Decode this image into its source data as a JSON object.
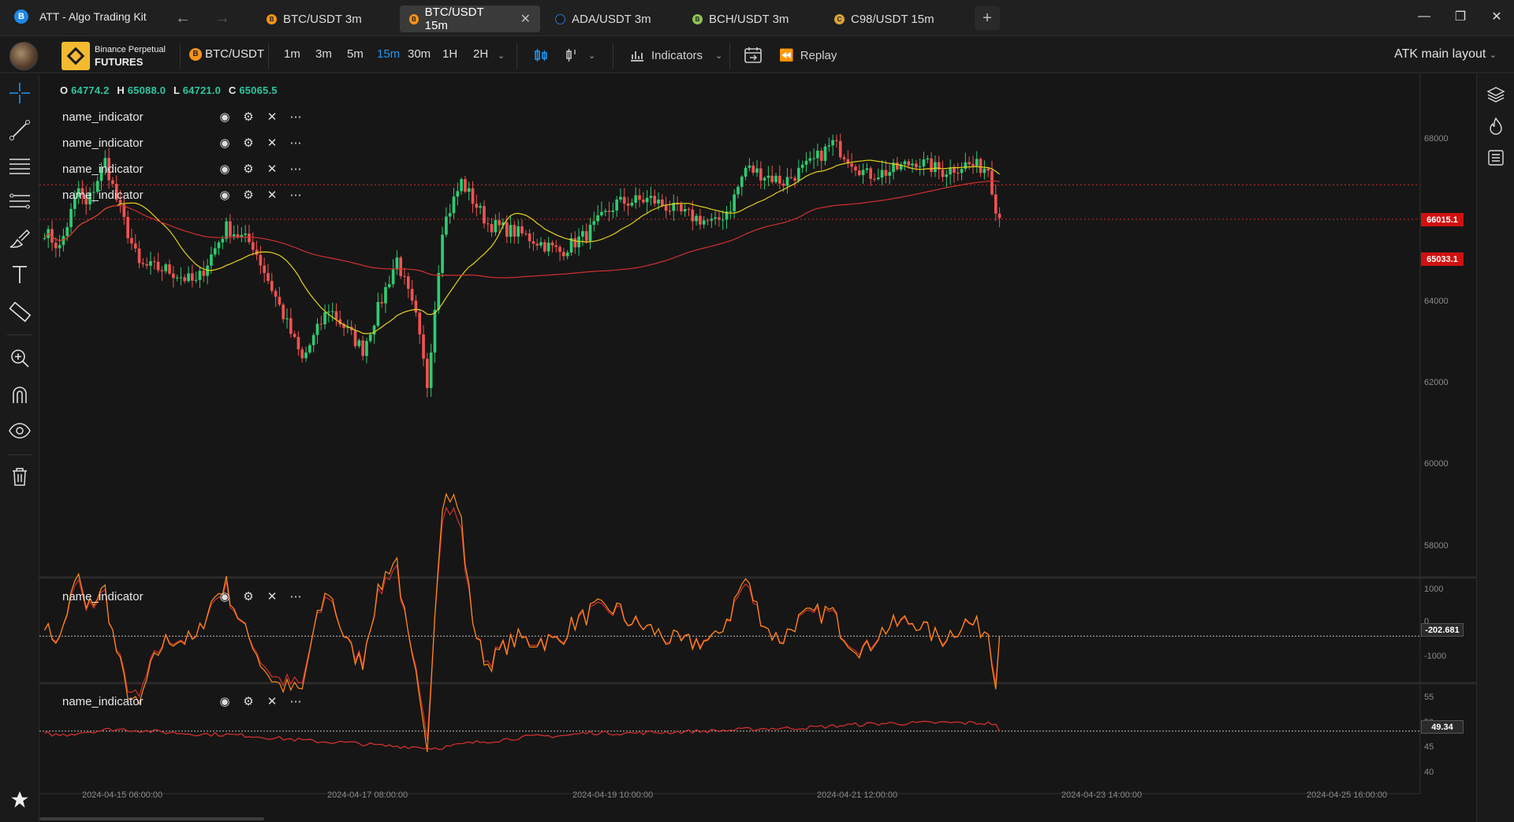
{
  "app": {
    "title": "ATT - Algo Trading Kit",
    "logo_letter": "B"
  },
  "tabs": [
    {
      "label": "BTC/USDT 3m",
      "coin": "B",
      "color": "#f7931a"
    },
    {
      "label": "BTC/USDT 15m",
      "coin": "B",
      "color": "#f7931a"
    },
    {
      "label": "ADA/USDT 3m",
      "coin": "",
      "color": "#2a71d0"
    },
    {
      "label": "BCH/USDT 3m",
      "coin": "B",
      "color": "#8dc351"
    },
    {
      "label": "C98/USDT 15m",
      "coin": "C",
      "color": "#d9a33a"
    }
  ],
  "exchange": {
    "line1": "Binance Perpetual",
    "line2": "FUTURES"
  },
  "symbol": {
    "label": "BTC/USDT",
    "coin": "B"
  },
  "timeframes": [
    "1m",
    "3m",
    "5m",
    "15m",
    "30m",
    "1H",
    "2H"
  ],
  "toolbar": {
    "indicators_label": "Indicators",
    "replay_label": "Replay",
    "layout_label": "ATK main layout"
  },
  "ohlc": {
    "o_label": "O",
    "o": "64774.2",
    "h_label": "H",
    "h": "65088.0",
    "l_label": "L",
    "l": "64721.0",
    "c_label": "C",
    "c": "65065.5"
  },
  "indicator_name": "name_indicator",
  "main_axis": [
    "68000",
    "66000",
    "64000",
    "62000",
    "60000",
    "58000"
  ],
  "price_tags": {
    "upper": "66015.1",
    "lower": "65033.1"
  },
  "pane2": {
    "axis": [
      "1000",
      "0",
      "-1000"
    ],
    "value": "-202.681"
  },
  "pane3": {
    "axis": [
      "55",
      "50",
      "45",
      "40"
    ],
    "value": "49.34"
  },
  "dates": [
    "2024-04-15 06:00:00",
    "2024-04-17 08:00:00",
    "2024-04-19 10:00:00",
    "2024-04-21 12:00:00",
    "2024-04-23 14:00:00",
    "2024-04-25 16:00:00"
  ],
  "colors": {
    "up": "#26a69a",
    "green": "#2ecc71",
    "down": "#ef5350",
    "accent": "#2196f3",
    "fast_ma": "#e6d21a",
    "slow_ma": "#d32f2f",
    "osc": "#ff8c1a"
  },
  "chart_data": {
    "type": "candlestick",
    "interval": "15m",
    "ylim": [
      57000,
      69000
    ],
    "close_anchors": [
      [
        0,
        64700
      ],
      [
        4,
        64200
      ],
      [
        9,
        65900
      ],
      [
        11,
        65400
      ],
      [
        16,
        66700
      ],
      [
        19,
        65600
      ],
      [
        25,
        63700
      ],
      [
        32,
        63600
      ],
      [
        40,
        63200
      ],
      [
        48,
        64800
      ],
      [
        55,
        64300
      ],
      [
        61,
        62800
      ],
      [
        68,
        61000
      ],
      [
        75,
        62500
      ],
      [
        84,
        61300
      ],
      [
        93,
        63900
      ],
      [
        98,
        62200
      ],
      [
        101,
        60300
      ],
      [
        105,
        64800
      ],
      [
        110,
        66100
      ],
      [
        117,
        64900
      ],
      [
        126,
        64600
      ],
      [
        136,
        64100
      ],
      [
        143,
        64600
      ],
      [
        151,
        65500
      ],
      [
        160,
        65600
      ],
      [
        168,
        65200
      ],
      [
        177,
        64900
      ],
      [
        181,
        65400
      ],
      [
        185,
        66500
      ],
      [
        195,
        66100
      ],
      [
        202,
        66600
      ],
      [
        208,
        67200
      ],
      [
        217,
        66300
      ],
      [
        223,
        66400
      ],
      [
        230,
        66700
      ],
      [
        237,
        66400
      ],
      [
        243,
        66600
      ],
      [
        249,
        66500
      ],
      [
        251,
        65400
      ],
      [
        252,
        65065
      ]
    ],
    "fast_ma_period": 20,
    "slow_ma_period": 100,
    "oscillator": {
      "name": "name_indicator",
      "last": -202.681,
      "ylim": [
        -1500,
        1500
      ]
    },
    "rsi": {
      "name": "name_indicator",
      "last": 49.34,
      "ylim": [
        38,
        57
      ]
    }
  }
}
